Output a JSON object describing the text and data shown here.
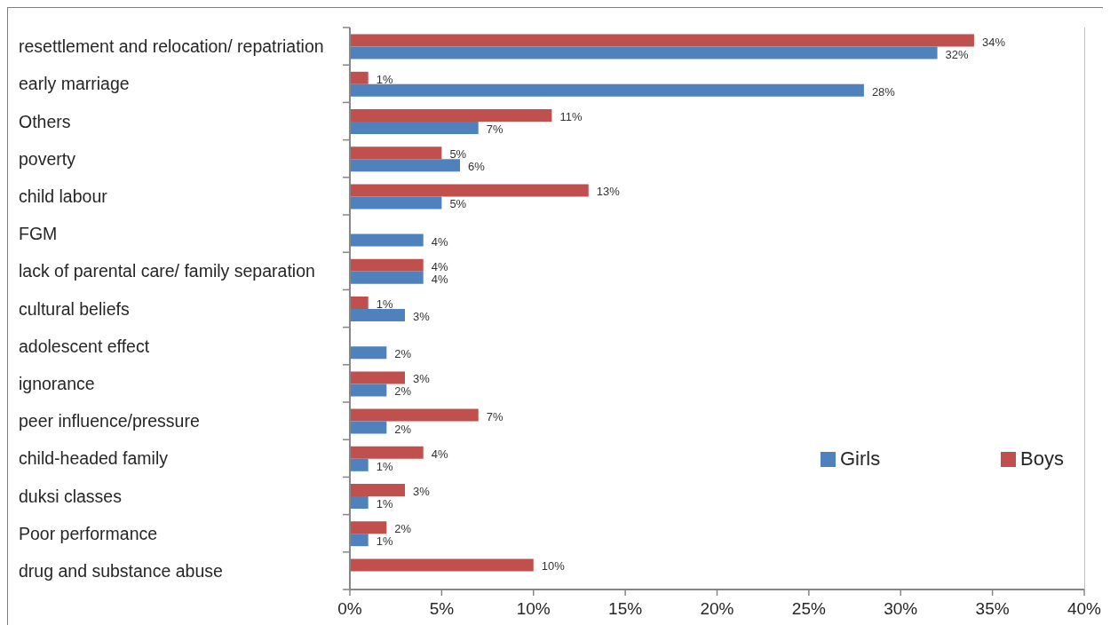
{
  "chart_data": {
    "type": "bar",
    "orientation": "horizontal",
    "categories": [
      "resettlement and relocation/ repatriation",
      "early marriage",
      "Others",
      "poverty",
      "child labour",
      "FGM",
      "lack of parental care/ family separation",
      "cultural beliefs",
      "adolescent effect",
      "ignorance",
      "peer influence/pressure",
      "child-headed family",
      "duksi classes",
      "Poor performance",
      "drug and substance abuse"
    ],
    "series": [
      {
        "name": "Girls",
        "color": "#4f81bd",
        "values": [
          32,
          28,
          7,
          6,
          5,
          4,
          4,
          3,
          2,
          2,
          2,
          1,
          1,
          1,
          null
        ],
        "value_labels": [
          "32%",
          "28%",
          "7%",
          "6%",
          "5%",
          "4%",
          "4%",
          "3%",
          "2%",
          "2%",
          "2%",
          "1%",
          "1%",
          "1%",
          null
        ]
      },
      {
        "name": "Boys",
        "color": "#c0504d",
        "values": [
          34,
          1,
          11,
          5,
          13,
          null,
          4,
          1,
          null,
          3,
          7,
          4,
          3,
          2,
          10
        ],
        "value_labels": [
          "34%",
          "1%",
          "11%",
          "5%",
          "13%",
          null,
          "4%",
          "1%",
          null,
          "3%",
          "7%",
          "4%",
          "3%",
          "2%",
          "10%"
        ]
      }
    ],
    "xlim": [
      0,
      40
    ],
    "xticks": [
      {
        "value": 0,
        "label": "0%"
      },
      {
        "value": 5,
        "label": "5%"
      },
      {
        "value": 10,
        "label": "10%"
      },
      {
        "value": 15,
        "label": "15%"
      },
      {
        "value": 20,
        "label": "20%"
      },
      {
        "value": 25,
        "label": "25%"
      },
      {
        "value": 30,
        "label": "30%"
      },
      {
        "value": 35,
        "label": "35%"
      },
      {
        "value": 40,
        "label": "40%"
      }
    ],
    "legend": "bottom right"
  }
}
